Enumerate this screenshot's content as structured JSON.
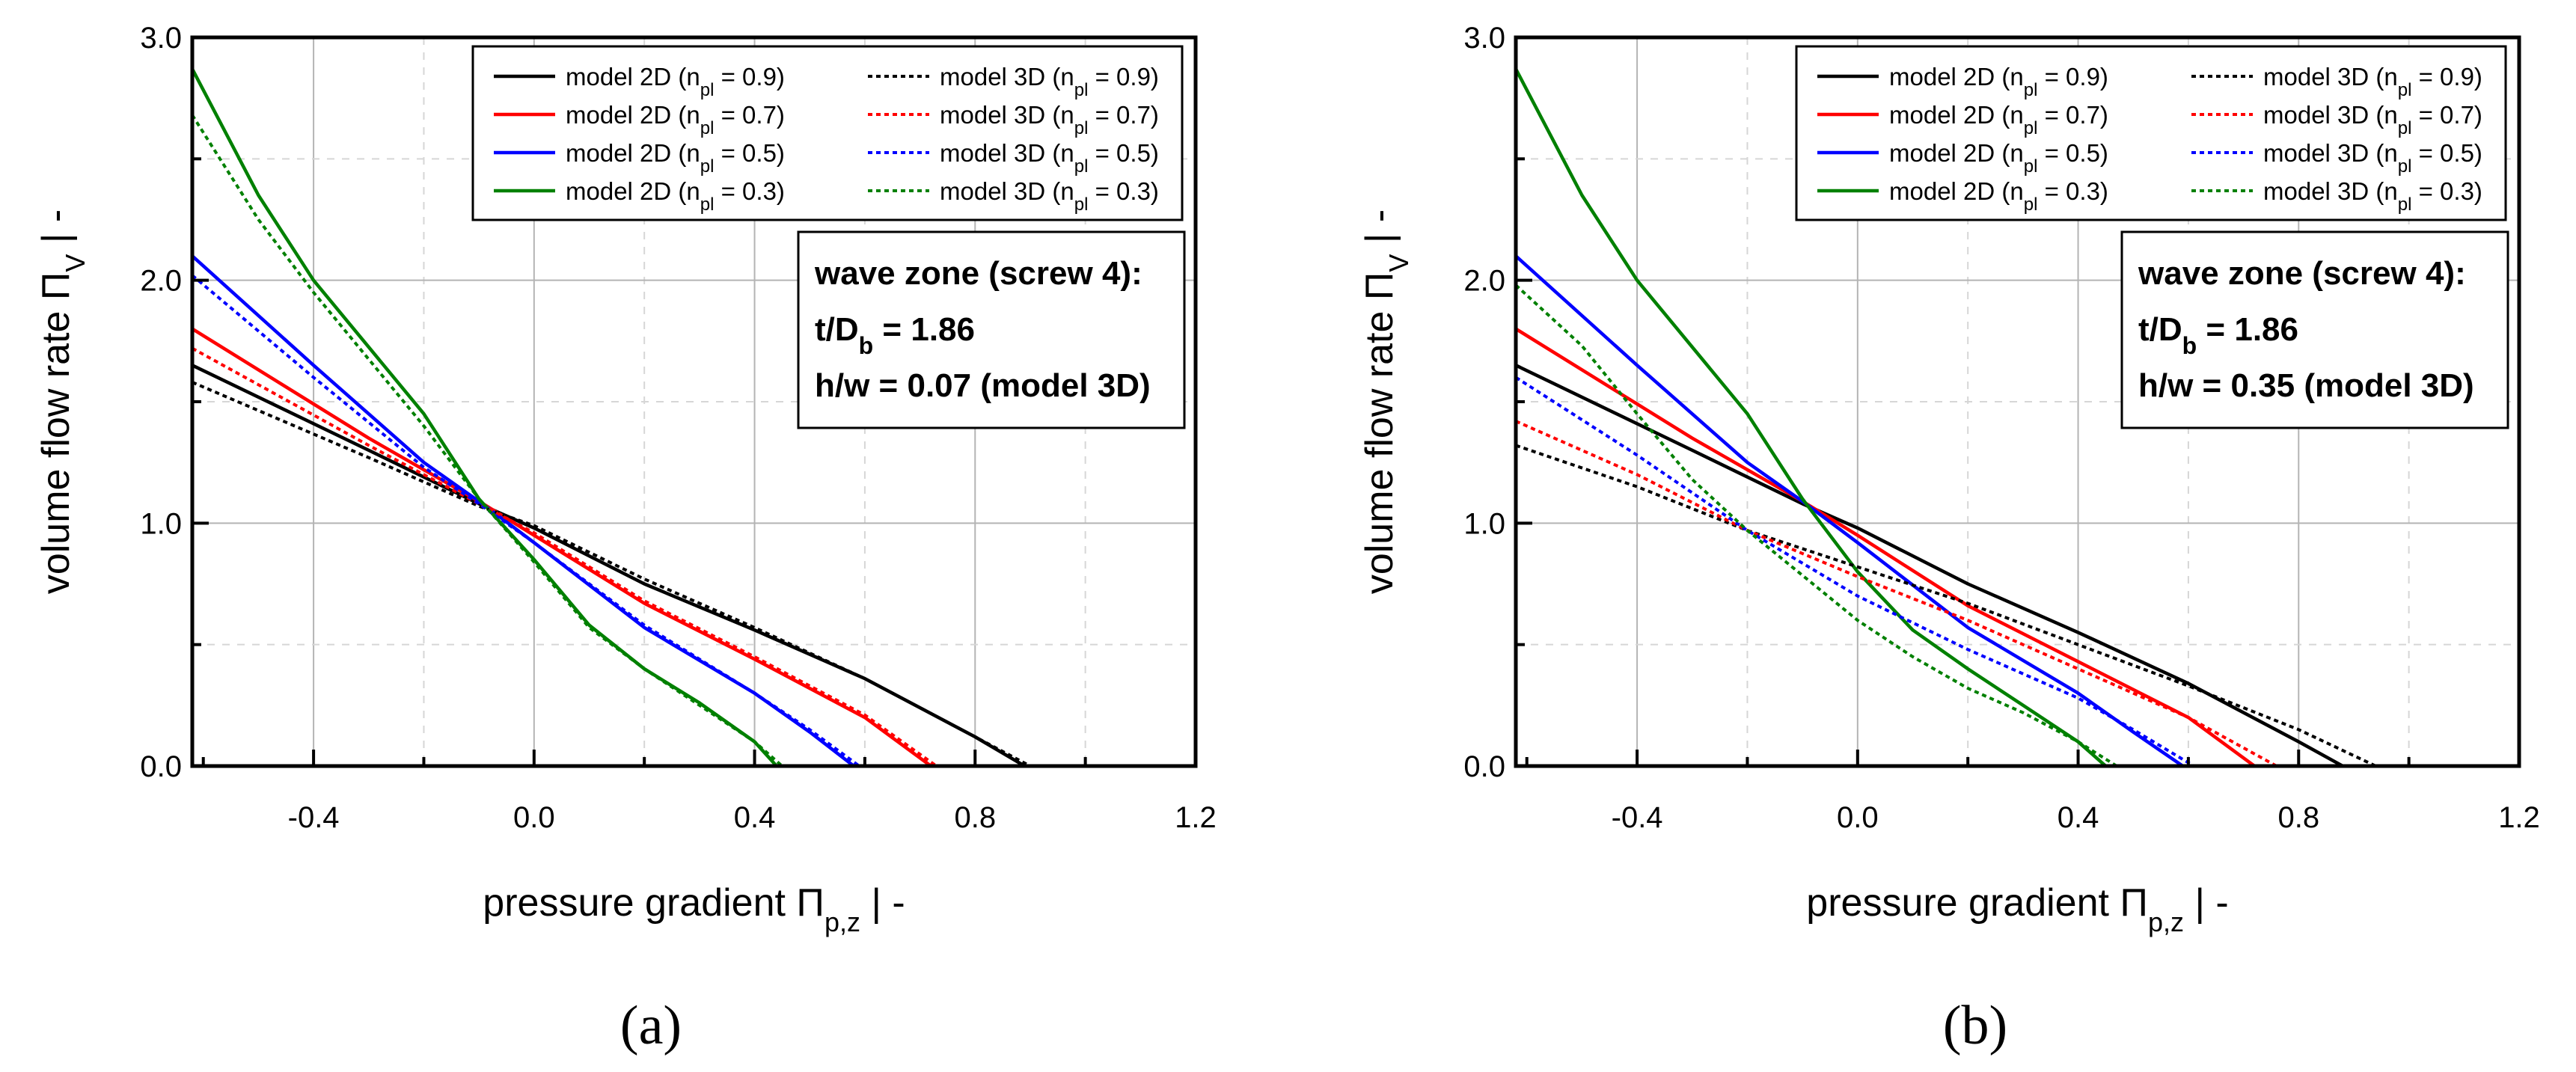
{
  "chart_data": [
    {
      "type": "line",
      "panel_label": "(a)",
      "xlabel": "pressure gradient Π",
      "xlabel_sub": "p,z",
      "xlabel_suffix": "  |  -",
      "ylabel": "volume flow rate Π",
      "ylabel_sub": "V",
      "ylabel_suffix": "  |  -",
      "xlim": [
        -0.62,
        1.2
      ],
      "ylim": [
        0,
        3.0
      ],
      "xticks": [
        "-0.4",
        "0.0",
        "0.4",
        "0.8",
        "1.2"
      ],
      "yticks": [
        "0.0",
        "1.0",
        "2.0",
        "3.0"
      ],
      "grid": true,
      "info": {
        "line1": "wave zone (screw 4):",
        "line2_a": "t/D",
        "line2_sub": "b",
        "line2_b": " = 1.86",
        "line3": "h/w = 0.07 (model 3D)"
      },
      "series": [
        {
          "name": "model 2D (n",
          "sub": "pl",
          "suffix": " = 0.9)",
          "color": "#000000",
          "dash": "solid",
          "x": [
            -0.62,
            -0.3,
            -0.1,
            0.0,
            0.2,
            0.4,
            0.6,
            0.8,
            0.89
          ],
          "y": [
            1.65,
            1.3,
            1.08,
            0.98,
            0.75,
            0.56,
            0.36,
            0.12,
            0.0
          ]
        },
        {
          "name": "model 2D (n",
          "sub": "pl",
          "suffix": " = 0.7)",
          "color": "#ff0000",
          "dash": "solid",
          "x": [
            -0.62,
            -0.3,
            -0.1,
            0.0,
            0.2,
            0.4,
            0.6,
            0.72
          ],
          "y": [
            1.8,
            1.35,
            1.09,
            0.95,
            0.67,
            0.44,
            0.2,
            0.0
          ]
        },
        {
          "name": "model 2D (n",
          "sub": "pl",
          "suffix": " = 0.5)",
          "color": "#0000ff",
          "dash": "solid",
          "x": [
            -0.62,
            -0.4,
            -0.2,
            -0.1,
            0.0,
            0.2,
            0.4,
            0.5,
            0.58
          ],
          "y": [
            2.1,
            1.65,
            1.25,
            1.09,
            0.92,
            0.57,
            0.3,
            0.14,
            0.0
          ]
        },
        {
          "name": "model 2D (n",
          "sub": "pl",
          "suffix": " = 0.3)",
          "color": "#008000",
          "dash": "solid",
          "x": [
            -0.62,
            -0.5,
            -0.4,
            -0.2,
            -0.1,
            0.0,
            0.1,
            0.2,
            0.3,
            0.4,
            0.44
          ],
          "y": [
            2.87,
            2.35,
            2.0,
            1.45,
            1.1,
            0.85,
            0.58,
            0.4,
            0.26,
            0.1,
            0.0
          ]
        },
        {
          "name": "model 3D (n",
          "sub": "pl",
          "suffix": " = 0.9)",
          "color": "#000000",
          "dash": "dotted",
          "x": [
            -0.62,
            -0.3,
            -0.1,
            0.0,
            0.2,
            0.4,
            0.6,
            0.8,
            0.9
          ],
          "y": [
            1.58,
            1.27,
            1.07,
            0.99,
            0.77,
            0.57,
            0.36,
            0.12,
            0.0
          ]
        },
        {
          "name": "model 3D (n",
          "sub": "pl",
          "suffix": " = 0.7)",
          "color": "#ff0000",
          "dash": "dotted",
          "x": [
            -0.62,
            -0.3,
            -0.1,
            0.0,
            0.2,
            0.4,
            0.6,
            0.73
          ],
          "y": [
            1.72,
            1.32,
            1.08,
            0.96,
            0.68,
            0.45,
            0.21,
            0.0
          ]
        },
        {
          "name": "model 3D (n",
          "sub": "pl",
          "suffix": " = 0.5)",
          "color": "#0000ff",
          "dash": "dotted",
          "x": [
            -0.62,
            -0.4,
            -0.2,
            -0.1,
            0.0,
            0.2,
            0.4,
            0.5,
            0.59
          ],
          "y": [
            2.02,
            1.6,
            1.23,
            1.08,
            0.92,
            0.58,
            0.3,
            0.15,
            0.0
          ]
        },
        {
          "name": "model 3D (n",
          "sub": "pl",
          "suffix": " = 0.3)",
          "color": "#008000",
          "dash": "dotted",
          "x": [
            -0.62,
            -0.5,
            -0.4,
            -0.2,
            -0.1,
            0.0,
            0.1,
            0.2,
            0.3,
            0.4,
            0.45
          ],
          "y": [
            2.68,
            2.25,
            1.95,
            1.4,
            1.1,
            0.84,
            0.57,
            0.4,
            0.25,
            0.1,
            0.0
          ]
        }
      ]
    },
    {
      "type": "line",
      "panel_label": "(b)",
      "xlabel": "pressure gradient Π",
      "xlabel_sub": "p,z",
      "xlabel_suffix": "  |  -",
      "ylabel": "volume flow rate Π",
      "ylabel_sub": "V",
      "ylabel_suffix": "  |  -",
      "xlim": [
        -0.62,
        1.2
      ],
      "ylim": [
        0,
        3.0
      ],
      "xticks": [
        "-0.4",
        "0.0",
        "0.4",
        "0.8",
        "1.2"
      ],
      "yticks": [
        "0.0",
        "1.0",
        "2.0",
        "3.0"
      ],
      "grid": true,
      "info": {
        "line1": "wave zone (screw 4):",
        "line2_a": "t/D",
        "line2_sub": "b",
        "line2_b": " = 1.86",
        "line3": "h/w = 0.35 (model 3D)"
      },
      "series": [
        {
          "name": "model 2D (n",
          "sub": "pl",
          "suffix": " = 0.9)",
          "color": "#000000",
          "dash": "solid",
          "x": [
            -0.62,
            -0.3,
            -0.1,
            0.0,
            0.2,
            0.4,
            0.6,
            0.8,
            0.88
          ],
          "y": [
            1.65,
            1.3,
            1.08,
            0.98,
            0.75,
            0.55,
            0.34,
            0.1,
            0.0
          ]
        },
        {
          "name": "model 2D (n",
          "sub": "pl",
          "suffix": " = 0.7)",
          "color": "#ff0000",
          "dash": "solid",
          "x": [
            -0.62,
            -0.3,
            -0.1,
            0.0,
            0.2,
            0.4,
            0.6,
            0.72
          ],
          "y": [
            1.8,
            1.35,
            1.09,
            0.95,
            0.66,
            0.43,
            0.2,
            0.0
          ]
        },
        {
          "name": "model 2D (n",
          "sub": "pl",
          "suffix": " = 0.5)",
          "color": "#0000ff",
          "dash": "solid",
          "x": [
            -0.62,
            -0.4,
            -0.2,
            -0.1,
            0.0,
            0.2,
            0.4,
            0.5,
            0.59
          ],
          "y": [
            2.1,
            1.65,
            1.25,
            1.09,
            0.92,
            0.57,
            0.3,
            0.14,
            0.0
          ]
        },
        {
          "name": "model 2D (n",
          "sub": "pl",
          "suffix": " = 0.3)",
          "color": "#008000",
          "dash": "solid",
          "x": [
            -0.62,
            -0.5,
            -0.4,
            -0.2,
            -0.1,
            0.0,
            0.1,
            0.2,
            0.3,
            0.4,
            0.45
          ],
          "y": [
            2.87,
            2.35,
            2.0,
            1.45,
            1.1,
            0.8,
            0.56,
            0.4,
            0.25,
            0.1,
            0.0
          ]
        },
        {
          "name": "model 3D (n",
          "sub": "pl",
          "suffix": " = 0.9)",
          "color": "#000000",
          "dash": "dotted",
          "x": [
            -0.62,
            -0.4,
            -0.2,
            0.0,
            0.2,
            0.4,
            0.6,
            0.8,
            0.94
          ],
          "y": [
            1.32,
            1.15,
            0.97,
            0.82,
            0.67,
            0.5,
            0.33,
            0.15,
            0.0
          ]
        },
        {
          "name": "model 3D (n",
          "sub": "pl",
          "suffix": " = 0.7)",
          "color": "#ff0000",
          "dash": "dotted",
          "x": [
            -0.62,
            -0.4,
            -0.2,
            0.0,
            0.2,
            0.4,
            0.6,
            0.76
          ],
          "y": [
            1.42,
            1.2,
            0.97,
            0.78,
            0.6,
            0.4,
            0.2,
            0.0
          ]
        },
        {
          "name": "model 3D (n",
          "sub": "pl",
          "suffix": " = 0.5)",
          "color": "#0000ff",
          "dash": "dotted",
          "x": [
            -0.62,
            -0.4,
            -0.2,
            0.0,
            0.2,
            0.4,
            0.5,
            0.61
          ],
          "y": [
            1.6,
            1.28,
            0.97,
            0.7,
            0.48,
            0.28,
            0.15,
            0.0
          ]
        },
        {
          "name": "model 3D (n",
          "sub": "pl",
          "suffix": " = 0.3)",
          "color": "#008000",
          "dash": "dotted",
          "x": [
            -0.62,
            -0.5,
            -0.4,
            -0.3,
            -0.2,
            0.0,
            0.1,
            0.2,
            0.3,
            0.4,
            0.47
          ],
          "y": [
            1.98,
            1.73,
            1.45,
            1.18,
            0.97,
            0.6,
            0.45,
            0.32,
            0.22,
            0.1,
            0.0
          ]
        }
      ]
    }
  ]
}
